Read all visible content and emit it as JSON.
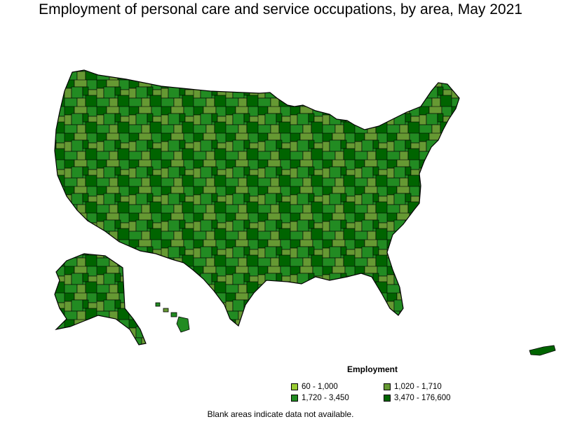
{
  "title": "Employment of personal care and service occupations, by area, May 2021",
  "legend": {
    "title": "Employment",
    "items": [
      {
        "label": "60 - 1,000",
        "color": "#99cc33"
      },
      {
        "label": "1,020 - 1,710",
        "color": "#669933"
      },
      {
        "label": "1,720 - 3,450",
        "color": "#228b22"
      },
      {
        "label": "3,470 - 176,600",
        "color": "#006400"
      }
    ]
  },
  "footnote": "Blank areas indicate data not available.",
  "colors": {
    "outline": "#000000",
    "background": "#ffffff"
  }
}
